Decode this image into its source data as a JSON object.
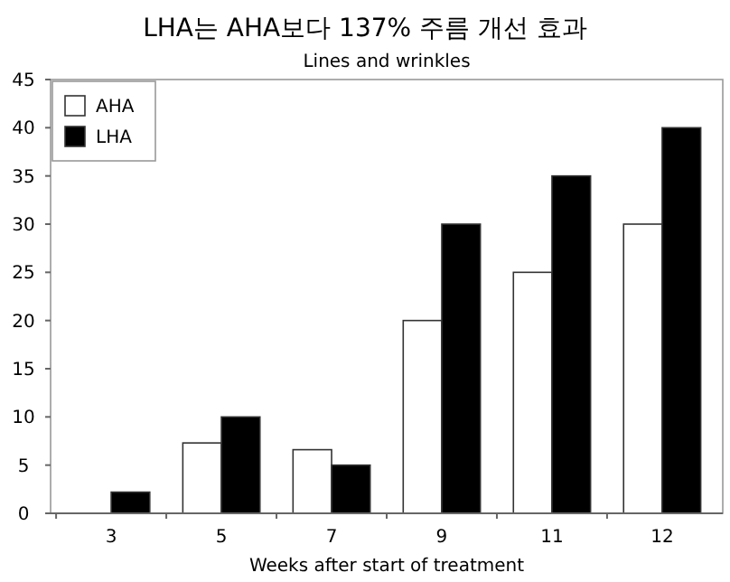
{
  "chart_data": {
    "type": "bar",
    "title": "LHA는 AHA보다 137% 주름 개선 효과",
    "subtitle": "Lines and wrinkles",
    "xlabel": "Weeks after start of treatment",
    "categories": [
      "3",
      "5",
      "7",
      "9",
      "11",
      "12"
    ],
    "series": [
      {
        "name": "AHA",
        "color": "#ffffff",
        "values": [
          0,
          7.3,
          6.6,
          20,
          25,
          30
        ]
      },
      {
        "name": "LHA",
        "color": "#000000",
        "values": [
          2.2,
          10,
          5,
          30,
          35,
          40
        ]
      }
    ],
    "ylim": [
      0,
      45
    ],
    "yticks": [
      0,
      5,
      10,
      15,
      20,
      25,
      30,
      35,
      40,
      45
    ],
    "grid": false,
    "legend": "top left"
  }
}
